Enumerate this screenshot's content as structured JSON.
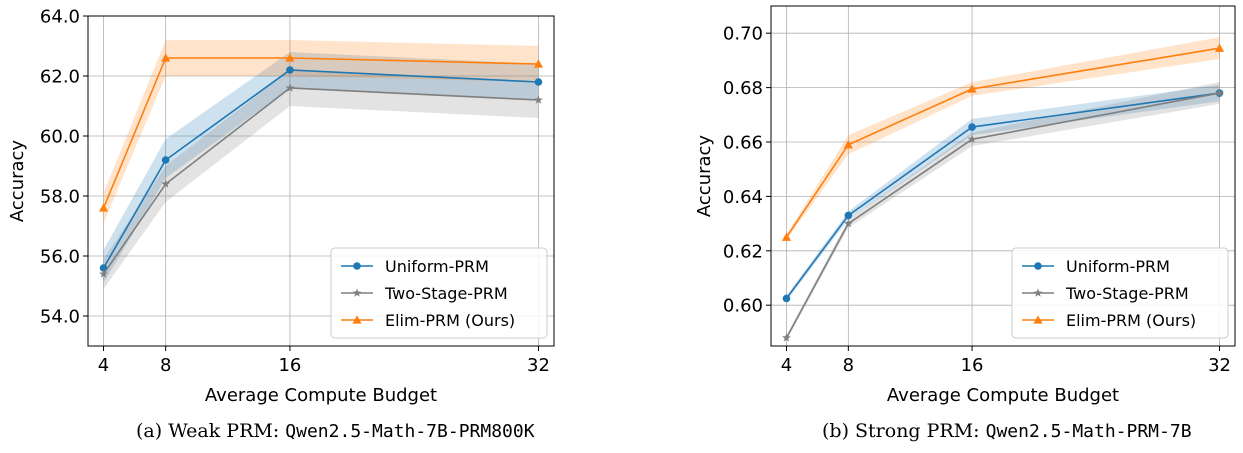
{
  "chart_data": [
    {
      "type": "line",
      "caption_prefix": "(a) Weak PRM: ",
      "caption_model": "Qwen2.5-Math-7B-PRM800K",
      "xlabel": "Average Compute Budget",
      "ylabel": "Accuracy",
      "x": [
        4,
        8,
        16,
        32
      ],
      "xlim": [
        3,
        33
      ],
      "ylim": [
        53.0,
        64.0
      ],
      "yticks": [
        "54.0",
        "56.0",
        "58.0",
        "60.0",
        "62.0",
        "64.0"
      ],
      "ytick_values": [
        54,
        56,
        58,
        60,
        62,
        64
      ],
      "xticks": [
        "4",
        "8",
        "16",
        "32"
      ],
      "grid": true,
      "legend_position": "lower-right",
      "series": [
        {
          "name": "Uniform-PRM",
          "color": "#1f77b4",
          "marker": "circle",
          "values": [
            55.6,
            59.2,
            62.2,
            61.8
          ],
          "lower": [
            55.1,
            58.6,
            61.6,
            61.2
          ],
          "upper": [
            56.2,
            59.9,
            62.8,
            62.4
          ]
        },
        {
          "name": "Two-Stage-PRM",
          "color": "#7f7f7f",
          "marker": "star",
          "values": [
            55.4,
            58.4,
            61.6,
            61.2
          ],
          "lower": [
            54.9,
            57.8,
            61.0,
            60.6
          ],
          "upper": [
            55.9,
            59.0,
            62.2,
            61.8
          ]
        },
        {
          "name": "Elim-PRM (Ours)",
          "color": "#ff7f0e",
          "marker": "triangle",
          "values": [
            57.6,
            62.6,
            62.6,
            62.4
          ],
          "lower": [
            57.1,
            62.0,
            62.0,
            61.8
          ],
          "upper": [
            58.1,
            63.2,
            63.2,
            63.0
          ]
        }
      ]
    },
    {
      "type": "line",
      "caption_prefix": "(b) Strong PRM: ",
      "caption_model": "Qwen2.5-Math-PRM-7B",
      "xlabel": "Average Compute Budget",
      "ylabel": "Accuracy",
      "x": [
        4,
        8,
        16,
        32
      ],
      "xlim": [
        3,
        33
      ],
      "ylim": [
        0.585,
        0.71
      ],
      "yticks": [
        "0.60",
        "0.62",
        "0.64",
        "0.66",
        "0.68",
        "0.70"
      ],
      "ytick_values": [
        0.6,
        0.62,
        0.64,
        0.66,
        0.68,
        0.7
      ],
      "xticks": [
        "4",
        "8",
        "16",
        "32"
      ],
      "grid": true,
      "legend_position": "lower-right",
      "series": [
        {
          "name": "Uniform-PRM",
          "color": "#1f77b4",
          "marker": "circle",
          "values": [
            0.6025,
            0.633,
            0.6655,
            0.678
          ],
          "lower": [
            0.6015,
            0.6315,
            0.6625,
            0.675
          ],
          "upper": [
            0.6035,
            0.6345,
            0.6685,
            0.681
          ]
        },
        {
          "name": "Two-Stage-PRM",
          "color": "#7f7f7f",
          "marker": "star",
          "values": [
            0.588,
            0.63,
            0.661,
            0.678
          ],
          "lower": [
            0.587,
            0.6285,
            0.6585,
            0.674
          ],
          "upper": [
            0.589,
            0.6315,
            0.6635,
            0.682
          ]
        },
        {
          "name": "Elim-PRM (Ours)",
          "color": "#ff7f0e",
          "marker": "triangle",
          "values": [
            0.625,
            0.659,
            0.6795,
            0.6945
          ],
          "lower": [
            0.624,
            0.6555,
            0.677,
            0.6905
          ],
          "upper": [
            0.626,
            0.6625,
            0.682,
            0.6985
          ]
        }
      ]
    }
  ]
}
